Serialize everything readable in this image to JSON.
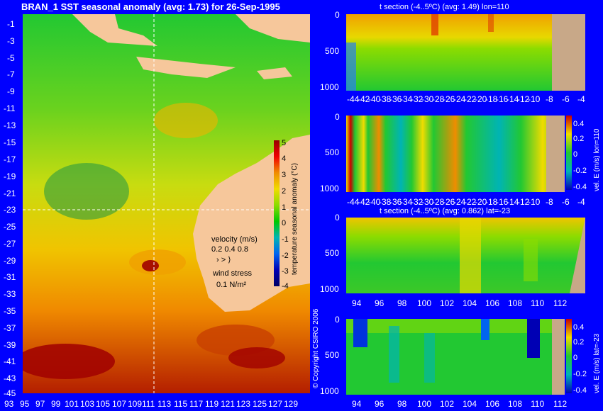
{
  "map": {
    "title": "BRAN_1  SST seasonal anomaly  (avg: 1.73) for 26-Sep-1995",
    "y_ticks": [
      "-1",
      "-3",
      "-5",
      "-7",
      "-9",
      "-11",
      "-13",
      "-15",
      "-17",
      "-19",
      "-21",
      "-23",
      "-25",
      "-27",
      "-29",
      "-31",
      "-33",
      "-35",
      "-37",
      "-39",
      "-41",
      "-43",
      "-45"
    ],
    "x_ticks": [
      "93",
      "95",
      "97",
      "99",
      "101",
      "103",
      "105",
      "107",
      "109",
      "111",
      "113",
      "115",
      "117",
      "119",
      "121",
      "123",
      "125",
      "127",
      "129"
    ],
    "colorbar": {
      "ticks": [
        "5",
        "4",
        "3",
        "2",
        "1",
        "0",
        "-1",
        "-2",
        "-3",
        "-4"
      ],
      "label": "temperature seasonal anomaly (°C)"
    },
    "velocity_legend": {
      "title": "velocity (m/s)",
      "values": "0.2 0.4 0.8"
    },
    "wind_legend": {
      "title": "wind stress",
      "value": "0.1 N/m²"
    },
    "copyright": "© Copyright CSIRO 2006"
  },
  "panels": [
    {
      "title": "t section (-4..5ºC) (avg: 1.49) lon=110",
      "y_ticks": [
        "0",
        "500",
        "1000"
      ],
      "x_ticks": [
        "-44",
        "-42",
        "-40",
        "-38",
        "-36",
        "-34",
        "-32",
        "-30",
        "-28",
        "-26",
        "-24",
        "-22",
        "-20",
        "-18",
        "-16",
        "-14",
        "-12",
        "-10",
        "-8",
        "-6",
        "-4"
      ]
    },
    {
      "title": "",
      "side_label": "vel. E (m/s) lon=110",
      "cbar_ticks": [
        "0.4",
        "0.2",
        "0",
        "-0.2",
        "-0.4"
      ],
      "y_ticks": [
        "0",
        "500",
        "1000"
      ],
      "x_ticks": [
        "-44",
        "-42",
        "-40",
        "-38",
        "-36",
        "-34",
        "-32",
        "-30",
        "-28",
        "-26",
        "-24",
        "-22",
        "-20",
        "-18",
        "-16",
        "-14",
        "-12",
        "-10",
        "-8",
        "-6",
        "-4"
      ]
    },
    {
      "title": "t section (-4..5ºC) (avg: 0.862) lat=-23",
      "y_ticks": [
        "0",
        "500",
        "1000"
      ],
      "x_ticks": [
        "94",
        "96",
        "98",
        "100",
        "102",
        "104",
        "106",
        "108",
        "110",
        "112"
      ]
    },
    {
      "title": "",
      "side_label": "vel. E (m/s) lat=-23",
      "cbar_ticks": [
        "0.4",
        "0.2",
        "0",
        "-0.2",
        "-0.4"
      ],
      "y_ticks": [
        "0",
        "500",
        "1000"
      ],
      "x_ticks": [
        "94",
        "96",
        "98",
        "100",
        "102",
        "104",
        "106",
        "108",
        "110",
        "112"
      ]
    }
  ],
  "chart_data": [
    {
      "type": "heatmap",
      "title": "BRAN_1  SST seasonal anomaly  (avg: 1.73) for 26-Sep-1995",
      "xlim": [
        93,
        129
      ],
      "ylim": [
        -45,
        -1
      ],
      "colorbar_range": [
        -4,
        5
      ],
      "xlabel": "",
      "ylabel": ""
    },
    {
      "type": "heatmap",
      "title": "t section (-4..5ºC) (avg: 1.49) lon=110",
      "xlim": [
        -45,
        -3
      ],
      "ylim": [
        1050,
        0
      ],
      "colorbar_range": [
        -4,
        5
      ]
    },
    {
      "type": "heatmap",
      "title": "",
      "xlim": [
        -45,
        -3
      ],
      "ylim": [
        1050,
        0
      ],
      "colorbar_range": [
        -0.4,
        0.4
      ]
    },
    {
      "type": "heatmap",
      "title": "t section (-4..5ºC) (avg: 0.862) lat=-23",
      "xlim": [
        93,
        114
      ],
      "ylim": [
        1050,
        0
      ],
      "colorbar_range": [
        -4,
        5
      ]
    },
    {
      "type": "heatmap",
      "title": "",
      "xlim": [
        93,
        114
      ],
      "ylim": [
        1050,
        0
      ],
      "colorbar_range": [
        -0.4,
        0.4
      ]
    }
  ],
  "colors": {
    "background": "#0000ff",
    "land": "#f6c79b",
    "section_land": "#c8a888"
  }
}
